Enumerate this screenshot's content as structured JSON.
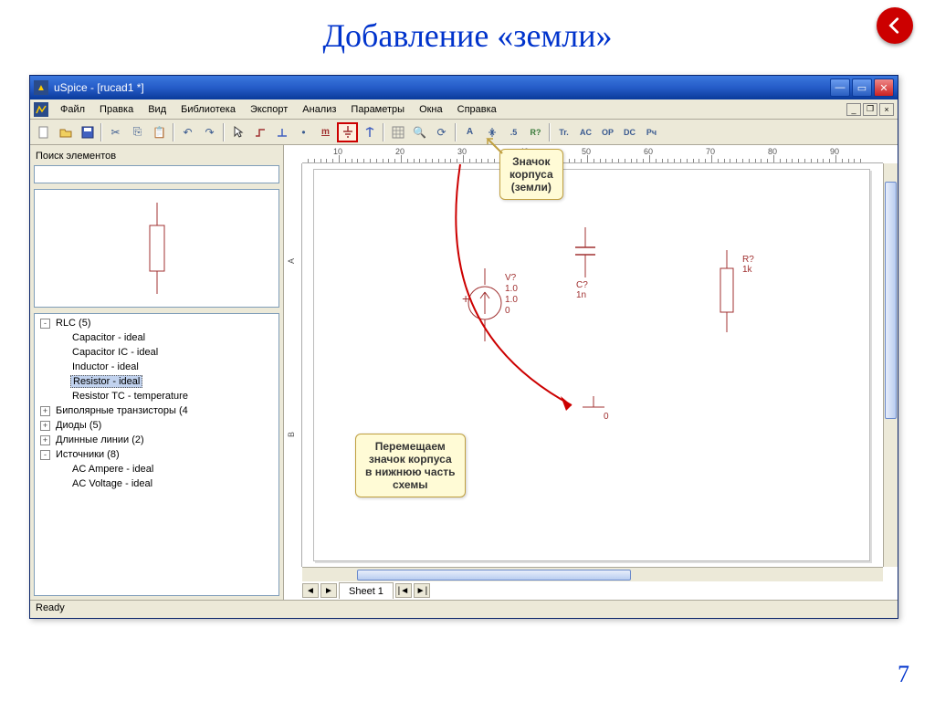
{
  "slide": {
    "title": "Добавление «земли»",
    "page_number": "7"
  },
  "window": {
    "title": "uSpice - [rucad1 *]",
    "menus": [
      "Файл",
      "Правка",
      "Вид",
      "Библиотека",
      "Экспорт",
      "Анализ",
      "Параметры",
      "Окна",
      "Справка"
    ],
    "status": "Ready",
    "sheet_tab": "Sheet 1"
  },
  "ruler": {
    "ticks": [
      "10",
      "20",
      "30",
      "40",
      "50",
      "60",
      "70",
      "80",
      "90"
    ]
  },
  "sidebar": {
    "header": "Поиск элементов",
    "tree": [
      {
        "exp": "-",
        "depth": 0,
        "label": "RLC (5)"
      },
      {
        "exp": "",
        "depth": 1,
        "label": "Capacitor - ideal"
      },
      {
        "exp": "",
        "depth": 1,
        "label": "Capacitor IC - ideal"
      },
      {
        "exp": "",
        "depth": 1,
        "label": "Inductor - ideal"
      },
      {
        "exp": "",
        "depth": 1,
        "label": "Resistor - ideal",
        "sel": true
      },
      {
        "exp": "",
        "depth": 1,
        "label": "Resistor TC - temperature"
      },
      {
        "exp": "+",
        "depth": 0,
        "label": "Биполярные транзисторы (4"
      },
      {
        "exp": "+",
        "depth": 0,
        "label": "Диоды (5)"
      },
      {
        "exp": "+",
        "depth": 0,
        "label": "Длинные линии (2)"
      },
      {
        "exp": "-",
        "depth": 0,
        "label": "Источники (8)"
      },
      {
        "exp": "",
        "depth": 1,
        "label": "AC Ampere - ideal"
      },
      {
        "exp": "",
        "depth": 1,
        "label": "AC Voltage - ideal"
      }
    ]
  },
  "toolbar_right": [
    "A",
    ".5",
    "R?",
    "Tr.",
    "AC",
    "OP",
    "DC",
    "Рч"
  ],
  "callouts": {
    "top": "Значок\nкорпуса\n(земли)",
    "bottom": "Перемещаем\nзначок корпуса\nв нижнюю часть\nсхемы"
  },
  "components": {
    "v": {
      "name": "V?",
      "p1": "1.0",
      "p2": "1.0",
      "p3": "0"
    },
    "c": {
      "name": "C?",
      "val": "1n"
    },
    "r": {
      "name": "R?",
      "val": "1k"
    },
    "gnd": "0"
  },
  "colors": {
    "accent": "#0033cc",
    "xp_blue": "#255cc8",
    "callout_bg": "#fffbd6",
    "callout_border": "#c0a040",
    "hl": "#c00",
    "comp": "#a03030"
  }
}
